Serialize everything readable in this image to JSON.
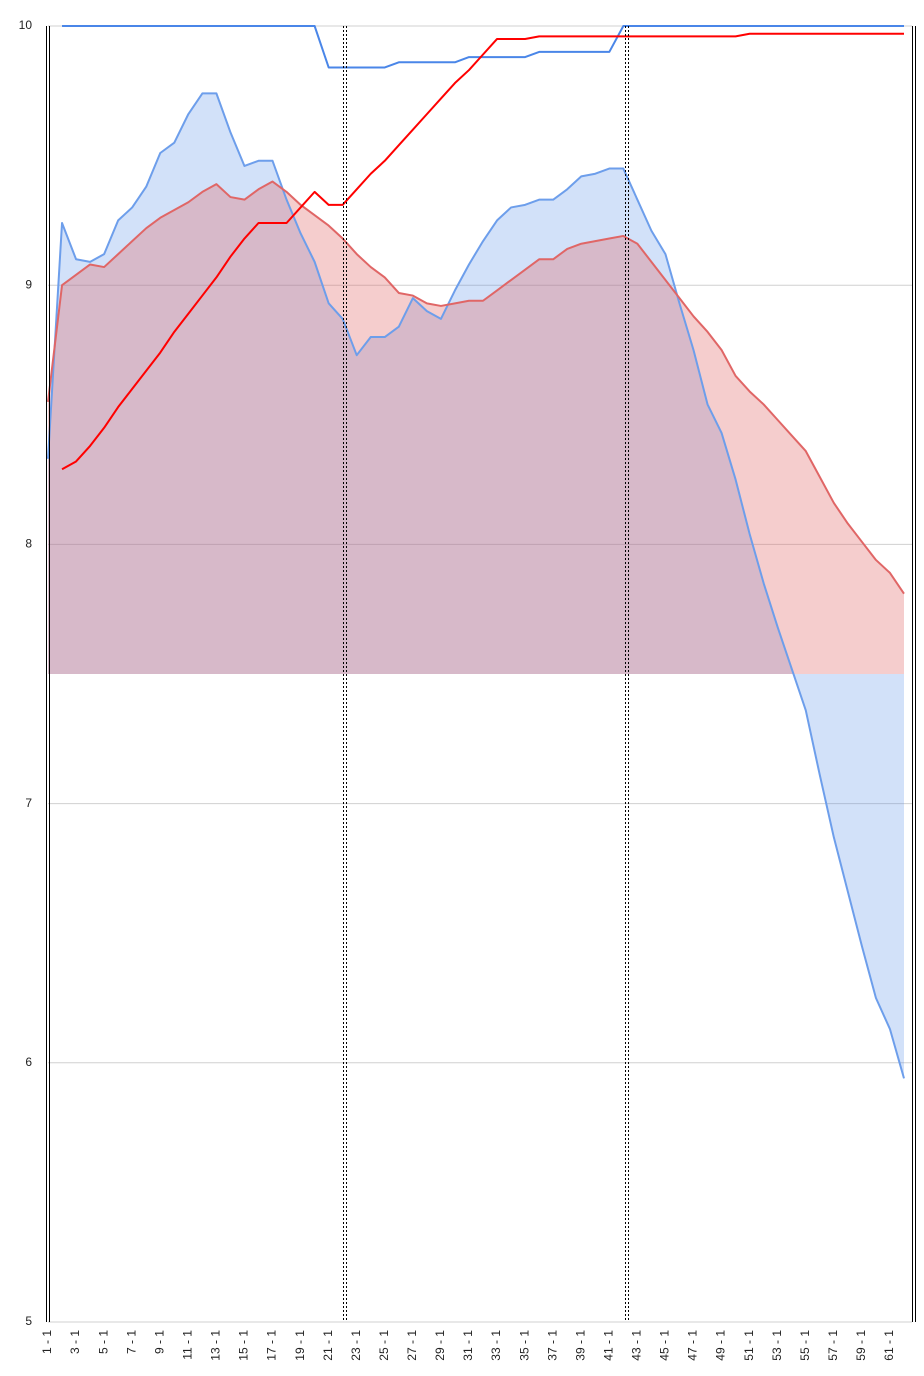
{
  "chart_data": {
    "type": "combo",
    "categories": [
      "1 - 1",
      null,
      "3 - 1",
      null,
      "5 - 1",
      null,
      "7 - 1",
      null,
      "9 - 1",
      null,
      "11 - 1",
      null,
      "13 - 1",
      null,
      "15 - 1",
      null,
      "17 - 1",
      null,
      "19 - 1",
      null,
      "21 - 1",
      null,
      "23 - 1",
      null,
      "25 - 1",
      null,
      "27 - 1",
      null,
      "29 - 1",
      null,
      "31 - 1",
      null,
      "33 - 1",
      null,
      "35 - 1",
      null,
      "37 - 1",
      null,
      "39 - 1",
      null,
      "41 - 1",
      null,
      "43 - 1",
      null,
      "45 - 1",
      null,
      "47 - 1",
      null,
      "49 - 1",
      null,
      "51 - 1",
      null,
      "53 - 1",
      null,
      "55 - 1",
      null,
      "57 - 1",
      null,
      "59 - 1",
      null,
      "61 - 1",
      null
    ],
    "ylim": [
      5,
      10
    ],
    "yticks": [
      5,
      6,
      7,
      8,
      9,
      10
    ],
    "grid": true,
    "baseline": 7.5,
    "series": [
      {
        "type": "area",
        "color": "#4a86e8",
        "line_color": "#6d9eeb",
        "values": [
          8.33,
          9.24,
          9.1,
          9.09,
          9.12,
          9.25,
          9.3,
          9.38,
          9.51,
          9.55,
          9.66,
          9.74,
          9.74,
          9.59,
          9.46,
          9.48,
          9.48,
          9.33,
          9.2,
          9.09,
          8.93,
          8.87,
          8.73,
          8.8,
          8.8,
          8.84,
          8.95,
          8.9,
          8.87,
          8.98,
          9.08,
          9.17,
          9.25,
          9.3,
          9.31,
          9.33,
          9.33,
          9.37,
          9.42,
          9.43,
          9.45,
          9.45,
          9.33,
          9.21,
          9.12,
          8.93,
          8.75,
          8.54,
          8.43,
          8.25,
          8.04,
          7.85,
          7.68,
          7.52,
          7.36,
          7.11,
          6.87,
          6.66,
          6.45,
          6.25,
          6.13,
          5.94
        ]
      },
      {
        "type": "area",
        "color": "#e06666",
        "line_color": "#e06666",
        "values": [
          8.55,
          9.0,
          9.04,
          9.08,
          9.07,
          9.12,
          9.17,
          9.22,
          9.26,
          9.29,
          9.32,
          9.36,
          9.39,
          9.34,
          9.33,
          9.37,
          9.4,
          9.36,
          9.31,
          9.27,
          9.23,
          9.18,
          9.12,
          9.07,
          9.03,
          8.97,
          8.96,
          8.93,
          8.92,
          8.93,
          8.94,
          8.94,
          8.98,
          9.02,
          9.06,
          9.1,
          9.1,
          9.14,
          9.16,
          9.17,
          9.18,
          9.19,
          9.16,
          9.09,
          9.02,
          8.95,
          8.88,
          8.82,
          8.75,
          8.65,
          8.59,
          8.54,
          8.48,
          8.42,
          8.36,
          8.26,
          8.16,
          8.08,
          8.01,
          7.94,
          7.89,
          7.81
        ]
      },
      {
        "type": "line",
        "color": "#4a86e8",
        "values": [
          null,
          10,
          10,
          10,
          10,
          10,
          10,
          10,
          10,
          10,
          10,
          10,
          10,
          10,
          10,
          10,
          10,
          10,
          10,
          10,
          9.84,
          9.84,
          9.84,
          9.84,
          9.84,
          9.86,
          9.86,
          9.86,
          9.86,
          9.86,
          9.88,
          9.88,
          9.88,
          9.88,
          9.88,
          9.9,
          9.9,
          9.9,
          9.9,
          9.9,
          9.9,
          10,
          10,
          10,
          10,
          10,
          10,
          10,
          10,
          10,
          10,
          10,
          10,
          10,
          10,
          10,
          10,
          10,
          10,
          10,
          10,
          10
        ]
      },
      {
        "type": "line",
        "color": "#ff0000",
        "values": [
          null,
          8.29,
          8.32,
          8.38,
          8.45,
          8.53,
          8.6,
          8.67,
          8.74,
          8.82,
          8.89,
          8.96,
          9.03,
          9.11,
          9.18,
          9.24,
          9.24,
          9.24,
          9.3,
          9.36,
          9.31,
          9.31,
          9.37,
          9.43,
          9.48,
          9.54,
          9.6,
          9.66,
          9.72,
          9.78,
          9.83,
          9.89,
          9.95,
          9.95,
          9.95,
          9.96,
          9.96,
          9.96,
          9.96,
          9.96,
          9.96,
          9.96,
          9.96,
          9.96,
          9.96,
          9.96,
          9.96,
          9.96,
          9.96,
          9.96,
          9.97,
          9.97,
          9.97,
          9.97,
          9.97,
          9.97,
          9.97,
          9.97,
          9.97,
          9.97,
          9.97,
          9.97
        ]
      }
    ]
  }
}
